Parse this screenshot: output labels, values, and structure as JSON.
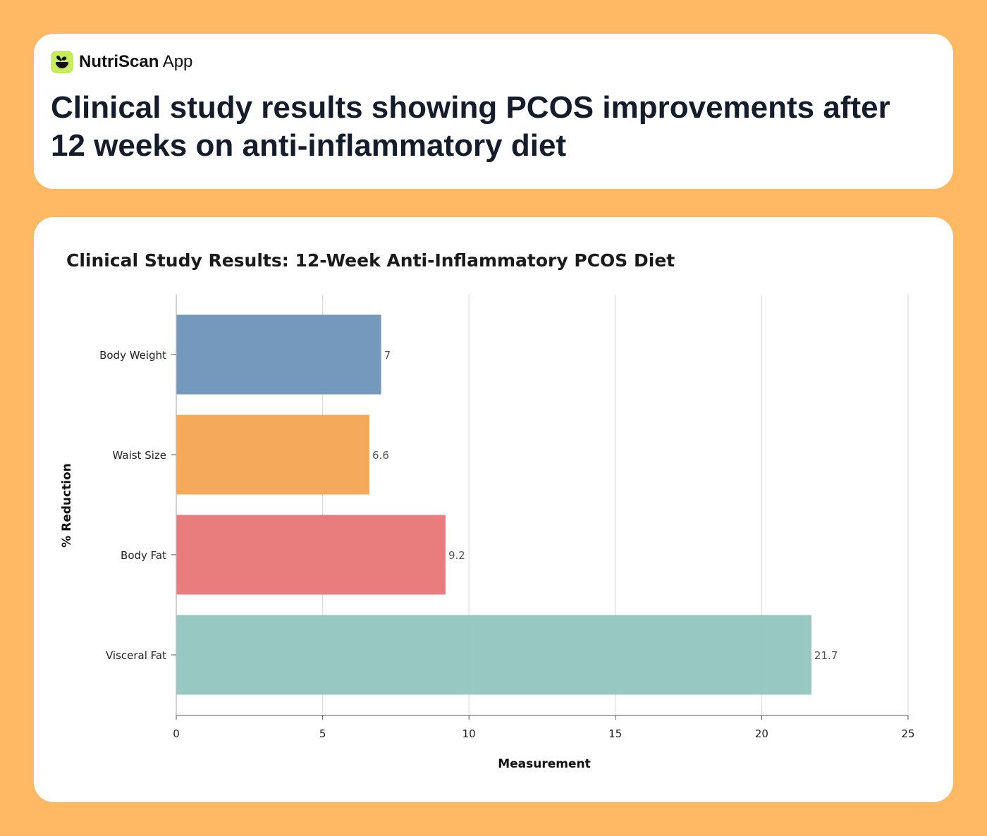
{
  "brand": {
    "name_bold": "NutriScan",
    "name_light": "App",
    "logo_color": "#C6EB5E"
  },
  "headline": "Clinical study results showing PCOS improvements after 12 weeks on anti-inflammatory diet",
  "chart_data": {
    "type": "bar",
    "orientation": "horizontal",
    "title": "Clinical Study Results: 12-Week Anti-Inflammatory PCOS Diet",
    "xlabel": "Measurement",
    "ylabel": "% Reduction",
    "categories": [
      "Body Weight",
      "Waist Size",
      "Body Fat",
      "Visceral Fat"
    ],
    "values": [
      7,
      6.6,
      9.2,
      21.7
    ],
    "value_labels": [
      "7",
      "6.6",
      "9.2",
      "21.7"
    ],
    "colors": [
      "#7096BA",
      "#F5A655",
      "#E8797A",
      "#94C6C0"
    ],
    "xlim": [
      0,
      25
    ],
    "xticks": [
      "0",
      "5",
      "10",
      "15",
      "20",
      "25"
    ],
    "grid": "vertical"
  }
}
